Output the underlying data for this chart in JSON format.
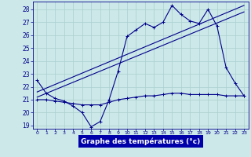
{
  "bg_color": "#cce8e8",
  "grid_color": "#aacfcf",
  "line_color": "#00008b",
  "xlabel": "Graphe des températures (°c)",
  "xlabel_bg": "#0000aa",
  "xlabel_fg": "#ffffff",
  "xlim": [
    -0.5,
    23.5
  ],
  "ylim": [
    18.75,
    28.6
  ],
  "yticks": [
    19,
    20,
    21,
    22,
    23,
    24,
    25,
    26,
    27,
    28
  ],
  "xticks": [
    0,
    1,
    2,
    3,
    4,
    5,
    6,
    7,
    8,
    9,
    10,
    11,
    12,
    13,
    14,
    15,
    16,
    17,
    18,
    19,
    20,
    21,
    22,
    23
  ],
  "main_x": [
    0,
    1,
    2,
    3,
    4,
    5,
    6,
    7,
    8,
    9,
    10,
    11,
    12,
    13,
    14,
    15,
    16,
    17,
    18,
    19,
    20,
    21,
    22,
    23
  ],
  "main_y": [
    22.5,
    21.5,
    21.1,
    20.9,
    20.5,
    20.0,
    18.9,
    19.3,
    21.0,
    23.2,
    25.9,
    26.4,
    26.9,
    26.6,
    27.0,
    28.3,
    27.6,
    27.1,
    26.9,
    28.0,
    26.7,
    23.5,
    22.3,
    21.3
  ],
  "flat_x": [
    0,
    1,
    2,
    3,
    4,
    5,
    6,
    7,
    8,
    9,
    10,
    11,
    12,
    13,
    14,
    15,
    16,
    17,
    18,
    19,
    20,
    21,
    22,
    23
  ],
  "flat_y": [
    21.0,
    21.0,
    20.9,
    20.8,
    20.7,
    20.6,
    20.6,
    20.6,
    20.8,
    21.0,
    21.1,
    21.2,
    21.3,
    21.3,
    21.4,
    21.5,
    21.5,
    21.4,
    21.4,
    21.4,
    21.4,
    21.3,
    21.3,
    21.3
  ],
  "trend1_x": [
    0,
    23
  ],
  "trend1_y": [
    21.2,
    27.8
  ],
  "trend2_x": [
    0,
    23
  ],
  "trend2_y": [
    21.6,
    28.3
  ]
}
